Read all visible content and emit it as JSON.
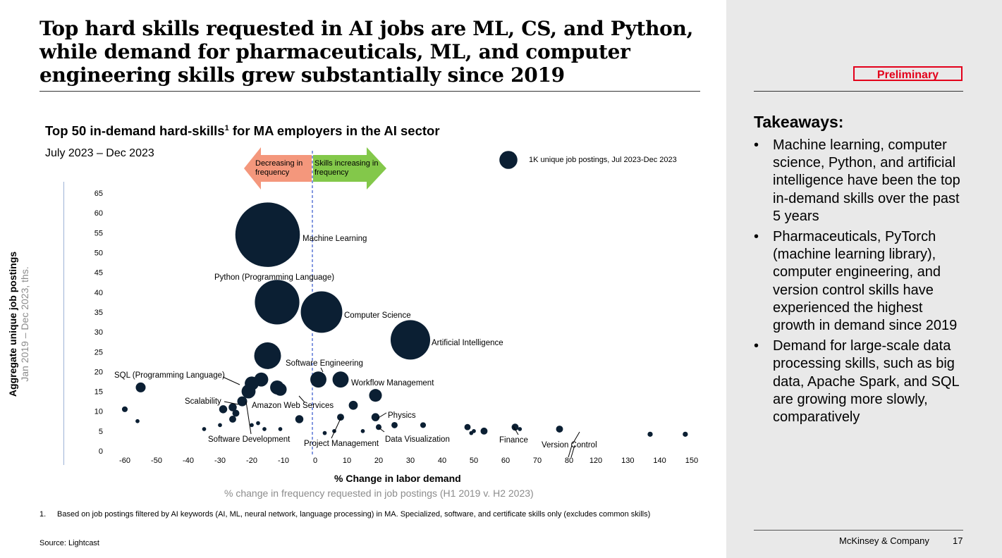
{
  "header": {
    "title_lines": [
      "Top hard skills requested in AI jobs are ML, CS, and Python,",
      "while demand for pharmaceuticals, ML, and computer",
      "engineering skills grew substantially since 2019"
    ],
    "badge": "Preliminary"
  },
  "chart_data": {
    "type": "scatter",
    "title": "Top 50 in-demand hard-skills",
    "title_sup": "1",
    "title_rest": " for MA employers in the AI sector",
    "subtitle": "July 2023 – Dec 2023",
    "xlabel": "% Change in labor demand",
    "xlabel_sub": "% change in frequency requested in job postings (H1 2019 v. H2 2023)",
    "ylabel": "Aggregate unique job postings",
    "ylabel_sub": "Jan 2019 – Dec 2023, ths.",
    "xlim": [
      -65,
      150
    ],
    "ylim": [
      0,
      65
    ],
    "x_ticks": [
      -60,
      -50,
      -40,
      -30,
      -20,
      -10,
      0,
      10,
      20,
      30,
      40,
      50,
      60,
      70,
      80,
      120,
      130,
      140,
      150
    ],
    "y_ticks": [
      0,
      5,
      10,
      15,
      20,
      25,
      30,
      35,
      40,
      45,
      50,
      55,
      60,
      65
    ],
    "axis_break_after": 80,
    "size_legend": "1K unique job postings, Jul 2023-Dec 2023",
    "arrow_left": "Decreasing in frequency",
    "arrow_right": "Skills increasing in frequency",
    "labeled_points": [
      {
        "label": "Machine Learning",
        "x": -15,
        "y": 54.5,
        "size": 12.8
      },
      {
        "label": "Python (Programming Language)",
        "x": -12,
        "y": 37.5,
        "size": 6.1
      },
      {
        "label": "Computer Science",
        "x": 2,
        "y": 35,
        "size": 5.3
      },
      {
        "label": "Artificial Intelligence",
        "x": 30,
        "y": 28,
        "size": 4.8
      },
      {
        "label": "Software Engineering",
        "x": -15,
        "y": 24,
        "size": 2.2
      },
      {
        "label": "SQL (Programming Language)",
        "x": -55,
        "y": 16,
        "size": 0.3
      },
      {
        "label": "Workflow Management",
        "x": 19,
        "y": 14,
        "size": 0.5
      },
      {
        "label": "Scalability",
        "x": -29,
        "y": 10.5,
        "size": 0.2
      },
      {
        "label": "Amazon Web Services",
        "x": -21,
        "y": 15,
        "size": 0.6
      },
      {
        "label": "Physics",
        "x": 19,
        "y": 8.5,
        "size": 0.2
      },
      {
        "label": "Software Development",
        "x": -20,
        "y": 6.5,
        "size": 0.05
      },
      {
        "label": "Project Management",
        "x": 8,
        "y": 8.5,
        "size": 0.15
      },
      {
        "label": "Data Visualization",
        "x": 20,
        "y": 6,
        "size": 0.1
      },
      {
        "label": "Finance",
        "x": 63,
        "y": 6,
        "size": 0.15
      },
      {
        "label": "Version Control",
        "x": 85,
        "y": 5,
        "size": 0.15
      }
    ],
    "points": [
      {
        "x": -17,
        "y": 18,
        "size": 0.6
      },
      {
        "x": -20,
        "y": 17,
        "size": 0.6
      },
      {
        "x": -12,
        "y": 16,
        "size": 0.6
      },
      {
        "x": 1,
        "y": 18,
        "size": 0.8
      },
      {
        "x": 8,
        "y": 18,
        "size": 0.8
      },
      {
        "x": -11,
        "y": 15.5,
        "size": 0.5
      },
      {
        "x": -23,
        "y": 12.5,
        "size": 0.3
      },
      {
        "x": -26,
        "y": 11,
        "size": 0.2
      },
      {
        "x": -25,
        "y": 9.5,
        "size": 0.15
      },
      {
        "x": 12,
        "y": 11.5,
        "size": 0.25
      },
      {
        "x": -26,
        "y": 8,
        "size": 0.15
      },
      {
        "x": -5,
        "y": 8,
        "size": 0.2
      },
      {
        "x": -60,
        "y": 10.5,
        "size": 0.1
      },
      {
        "x": -56,
        "y": 7.5,
        "size": 0.05
      },
      {
        "x": -35,
        "y": 5.5,
        "size": 0.05
      },
      {
        "x": -30,
        "y": 6.5,
        "size": 0.05
      },
      {
        "x": -18,
        "y": 7,
        "size": 0.05
      },
      {
        "x": -16,
        "y": 5.5,
        "size": 0.05
      },
      {
        "x": -11,
        "y": 5.5,
        "size": 0.05
      },
      {
        "x": 3,
        "y": 4.5,
        "size": 0.05
      },
      {
        "x": 6,
        "y": 5,
        "size": 0.05
      },
      {
        "x": 15,
        "y": 5,
        "size": 0.05
      },
      {
        "x": 25,
        "y": 6.5,
        "size": 0.12
      },
      {
        "x": 34,
        "y": 6.5,
        "size": 0.1
      },
      {
        "x": 48,
        "y": 6,
        "size": 0.12
      },
      {
        "x": 50,
        "y": 5,
        "size": 0.05
      },
      {
        "x": 64.5,
        "y": 5.5,
        "size": 0.05
      },
      {
        "x": 77,
        "y": 5.5,
        "size": 0.15
      },
      {
        "x": 81,
        "y": 4.5,
        "size": 0.05
      },
      {
        "x": 137,
        "y": 4.2,
        "size": 0.08
      },
      {
        "x": 148,
        "y": 4.2,
        "size": 0.08
      }
    ]
  },
  "takeaways": {
    "title": "Takeaways:",
    "items": [
      "Machine learning, computer science, Python, and artificial intelligence have been the top in-demand skills over the past 5 years",
      "Pharmaceuticals, PyTorch (machine learning library), computer engineering, and version control skills have experienced the highest growth in demand since 2019",
      "Demand for large-scale data processing skills, such as big data, Apache Spark, and SQL are growing more slowly, comparatively"
    ]
  },
  "footnote": {
    "number": "1.",
    "text": "Based on job postings filtered by AI keywords (AI, ML, neural network, language processing) in MA. Specialized, software, and certificate skills only (excludes common skills)"
  },
  "source": "Source: Lightcast",
  "footer": {
    "brand": "McKinsey & Company",
    "page": "17"
  },
  "colors": {
    "bubble": "#0b1f33",
    "arrow_left": "#f4977c",
    "arrow_right": "#83c84a",
    "divider": "#3355cc",
    "badge": "#e3001b"
  }
}
